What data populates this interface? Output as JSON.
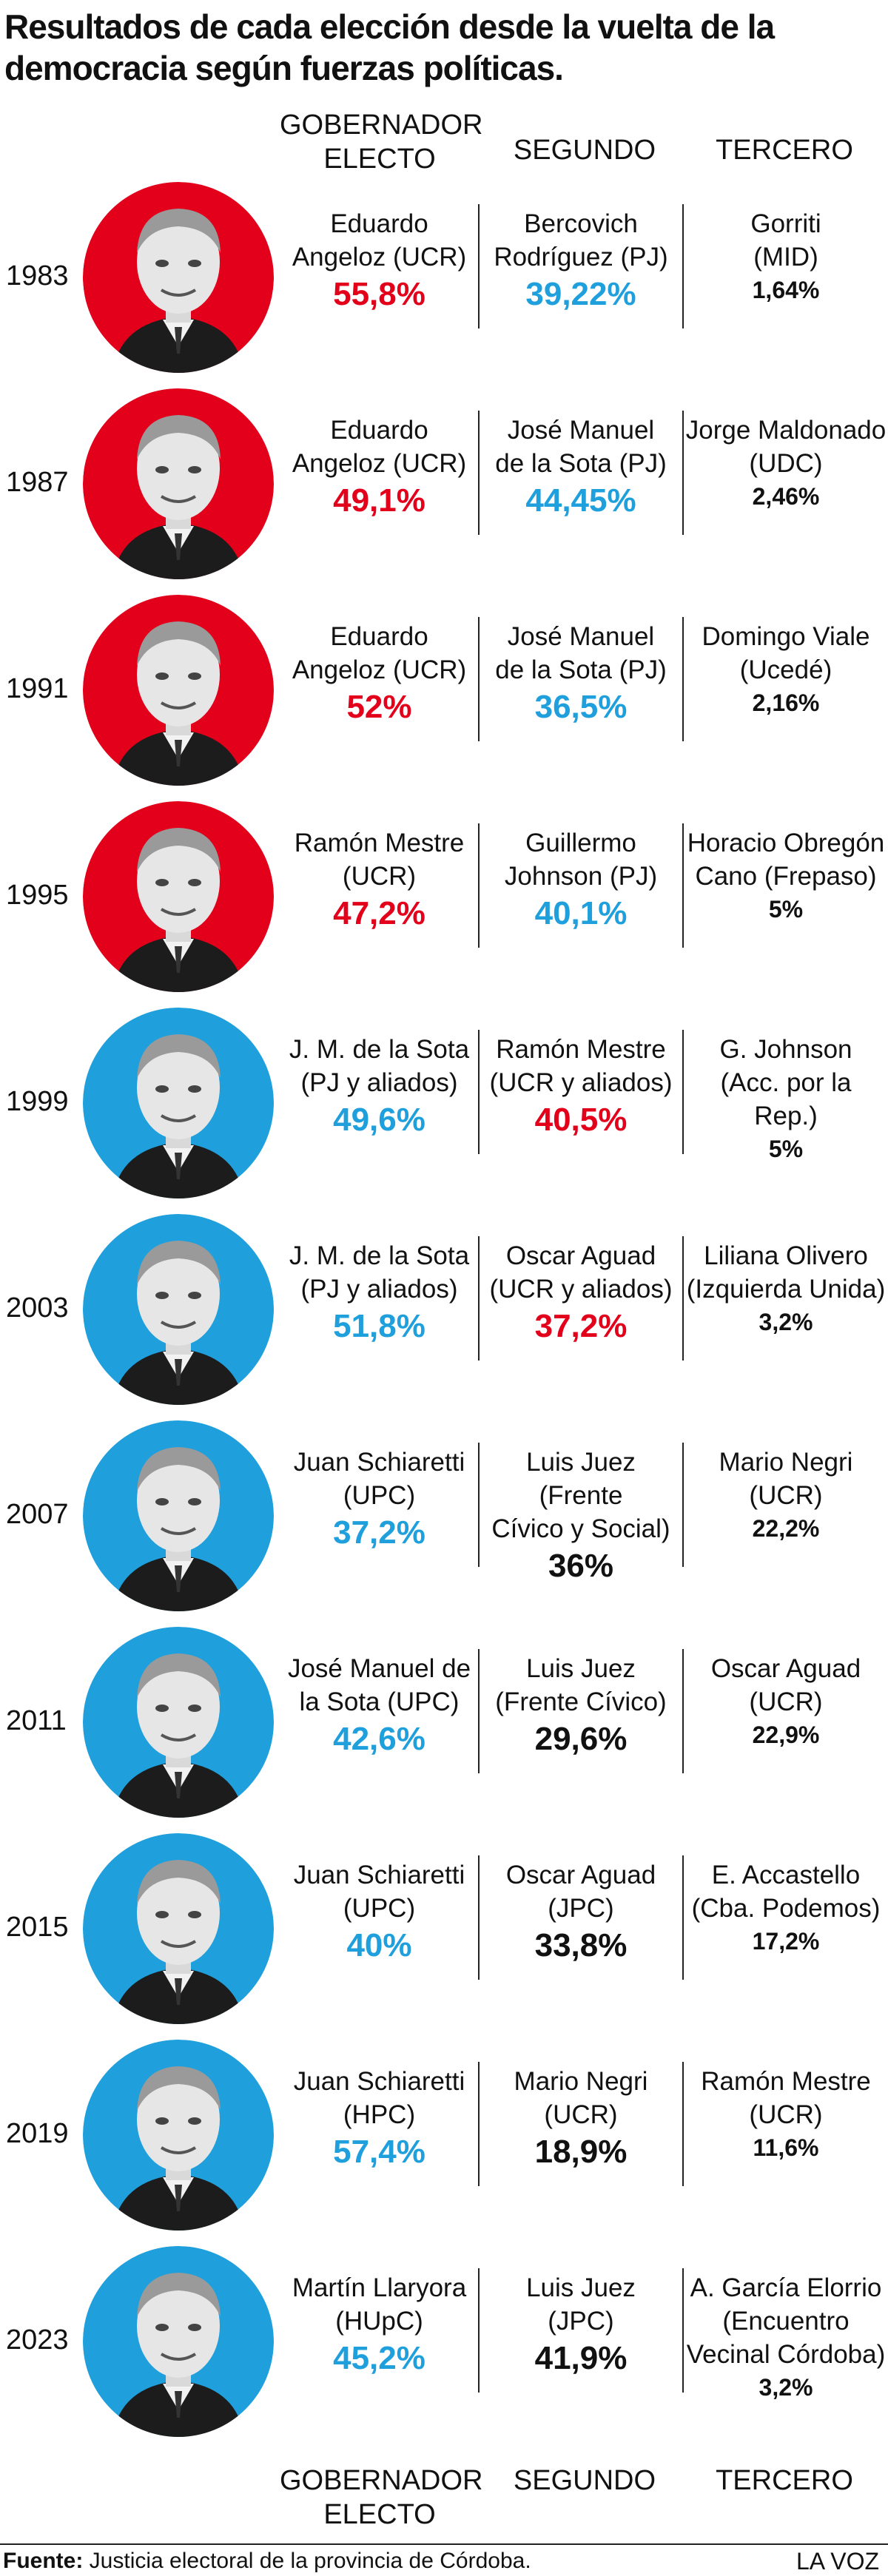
{
  "title": "Resultados de cada elección desde la vuelta de la democracia según fuerzas políticas.",
  "headers": {
    "gobernador": "GOBERNADOR\nELECTO",
    "segundo": "SEGUNDO",
    "tercero": "TERCERO"
  },
  "colors": {
    "ucr_red": "#e3001b",
    "pj_blue": "#1fa0dc",
    "neutral": "#111111"
  },
  "elections": [
    {
      "year": "1983",
      "bg": "#e3001b",
      "first": {
        "name": "Eduardo\nAngeloz (UCR)",
        "pct": "55,8%",
        "color": "#e3001b"
      },
      "second": {
        "name": "Bercovich\nRodríguez (PJ)",
        "pct": "39,22%",
        "color": "#1fa0dc"
      },
      "third": {
        "name": "Gorriti\n(MID)",
        "pct": "1,64%"
      }
    },
    {
      "year": "1987",
      "bg": "#e3001b",
      "first": {
        "name": "Eduardo\nAngeloz (UCR)",
        "pct": "49,1%",
        "color": "#e3001b"
      },
      "second": {
        "name": "José Manuel\nde la Sota (PJ)",
        "pct": "44,45%",
        "color": "#1fa0dc"
      },
      "third": {
        "name": "Jorge Maldonado\n(UDC)",
        "pct": "2,46%"
      }
    },
    {
      "year": "1991",
      "bg": "#e3001b",
      "first": {
        "name": "Eduardo\nAngeloz (UCR)",
        "pct": "52%",
        "color": "#e3001b"
      },
      "second": {
        "name": "José Manuel\nde la Sota (PJ)",
        "pct": "36,5%",
        "color": "#1fa0dc"
      },
      "third": {
        "name": "Domingo Viale\n(Ucedé)",
        "pct": "2,16%"
      }
    },
    {
      "year": "1995",
      "bg": "#e3001b",
      "first": {
        "name": "Ramón Mestre\n(UCR)",
        "pct": "47,2%",
        "color": "#e3001b"
      },
      "second": {
        "name": "Guillermo\nJohnson (PJ)",
        "pct": "40,1%",
        "color": "#1fa0dc"
      },
      "third": {
        "name": "Horacio Obregón\nCano (Frepaso)",
        "pct": "5%"
      }
    },
    {
      "year": "1999",
      "bg": "#1fa0dc",
      "first": {
        "name": "J. M. de la Sota\n(PJ y aliados)",
        "pct": "49,6%",
        "color": "#1fa0dc"
      },
      "second": {
        "name": "Ramón Mestre\n(UCR y aliados)",
        "pct": "40,5%",
        "color": "#e3001b"
      },
      "third": {
        "name": "G. Johnson\n(Acc. por la Rep.)",
        "pct": "5%"
      }
    },
    {
      "year": "2003",
      "bg": "#1fa0dc",
      "first": {
        "name": "J. M. de la Sota\n(PJ y aliados)",
        "pct": "51,8%",
        "color": "#1fa0dc"
      },
      "second": {
        "name": "Oscar Aguad\n(UCR y aliados)",
        "pct": "37,2%",
        "color": "#e3001b"
      },
      "third": {
        "name": "Liliana Olivero\n(Izquierda Unida)",
        "pct": "3,2%"
      }
    },
    {
      "year": "2007",
      "bg": "#1fa0dc",
      "first": {
        "name": "Juan Schiaretti\n(UPC)",
        "pct": "37,2%",
        "color": "#1fa0dc"
      },
      "second": {
        "name": "Luis Juez (Frente\nCívico y Social)",
        "pct": "36%",
        "color": "#111111"
      },
      "third": {
        "name": "Mario Negri\n(UCR)",
        "pct": "22,2%"
      }
    },
    {
      "year": "2011",
      "bg": "#1fa0dc",
      "first": {
        "name": "José Manuel de\nla Sota (UPC)",
        "pct": "42,6%",
        "color": "#1fa0dc"
      },
      "second": {
        "name": "Luis Juez\n(Frente Cívico)",
        "pct": "29,6%",
        "color": "#111111"
      },
      "third": {
        "name": "Oscar Aguad\n(UCR)",
        "pct": "22,9%"
      }
    },
    {
      "year": "2015",
      "bg": "#1fa0dc",
      "first": {
        "name": "Juan Schiaretti\n(UPC)",
        "pct": "40%",
        "color": "#1fa0dc"
      },
      "second": {
        "name": "Oscar Aguad\n(JPC)",
        "pct": "33,8%",
        "color": "#111111"
      },
      "third": {
        "name": "E. Accastello\n(Cba. Podemos)",
        "pct": "17,2%"
      }
    },
    {
      "year": "2019",
      "bg": "#1fa0dc",
      "first": {
        "name": "Juan Schiaretti\n(HPC)",
        "pct": "57,4%",
        "color": "#1fa0dc"
      },
      "second": {
        "name": "Mario Negri\n(UCR)",
        "pct": "18,9%",
        "color": "#111111"
      },
      "third": {
        "name": "Ramón Mestre\n(UCR)",
        "pct": "11,6%"
      }
    },
    {
      "year": "2023",
      "bg": "#1fa0dc",
      "first": {
        "name": "Martín Llaryora\n(HUpC)",
        "pct": "45,2%",
        "color": "#1fa0dc"
      },
      "second": {
        "name": "Luis Juez\n(JPC)",
        "pct": "41,9%",
        "color": "#111111"
      },
      "third": {
        "name": "A. García Elorrio\n(Encuentro\nVecinal Córdoba)",
        "pct": "3,2%"
      }
    }
  ],
  "footer": {
    "source_label": "Fuente:",
    "source_text": "Justicia electoral de la provincia de Córdoba.",
    "brand": "LA VOZ"
  }
}
